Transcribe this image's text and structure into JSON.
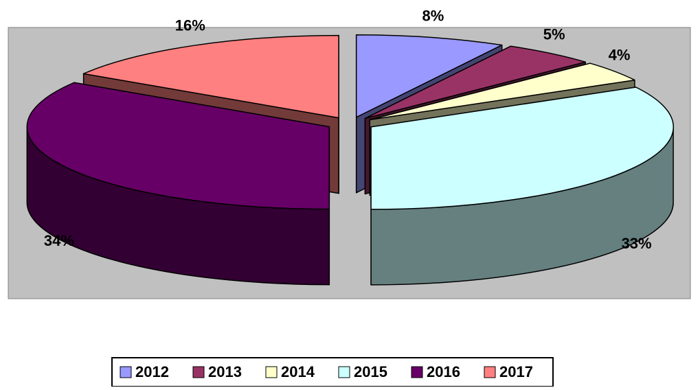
{
  "chart_data": {
    "type": "pie3d",
    "categories": [
      "2012",
      "2013",
      "2014",
      "2015",
      "2016",
      "2017"
    ],
    "values": [
      8,
      5,
      4,
      33,
      34,
      16
    ],
    "value_labels": [
      "8%",
      "5%",
      "4%",
      "33%",
      "34%",
      "16%"
    ],
    "colors": [
      "#9999ff",
      "#993366",
      "#ffffcc",
      "#ccffff",
      "#660066",
      "#ff8080"
    ],
    "legend": "bottom"
  }
}
